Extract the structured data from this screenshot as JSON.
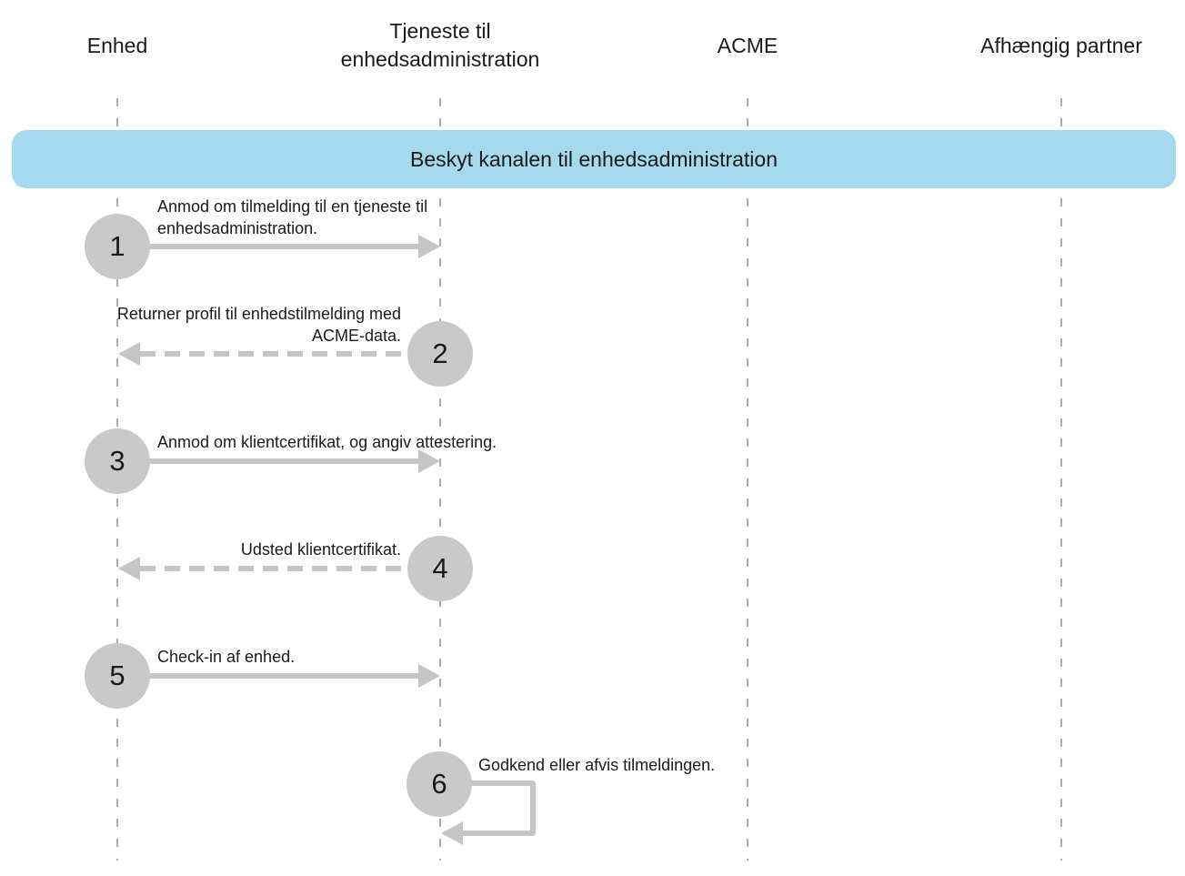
{
  "diagram": {
    "type": "sequence",
    "actors": [
      {
        "id": "enhed",
        "label": "Enhed"
      },
      {
        "id": "tjeneste",
        "label": "Tjeneste til enhedsadministration"
      },
      {
        "id": "acme",
        "label": "ACME"
      },
      {
        "id": "partner",
        "label": "Afhængig partner"
      }
    ],
    "banner": {
      "label": "Beskyt kanalen til enhedsadministration"
    },
    "steps": [
      {
        "num": "1",
        "text": "Anmod om tilmelding til en tjeneste til enhedsadministration.",
        "from": "Enhed",
        "to": "Tjeneste til enhedsadministration",
        "line": "solid",
        "direction": "right"
      },
      {
        "num": "2",
        "text": "Returner profil til enhedstilmelding med ACME-data.",
        "from": "Tjeneste til enhedsadministration",
        "to": "Enhed",
        "line": "dashed",
        "direction": "left"
      },
      {
        "num": "3",
        "text": "Anmod om klientcertifikat, og angiv attestering.",
        "from": "Enhed",
        "to": "Tjeneste til enhedsadministration",
        "line": "solid",
        "direction": "right"
      },
      {
        "num": "4",
        "text": "Udsted klientcertifikat.",
        "from": "Tjeneste til enhedsadministration",
        "to": "Enhed",
        "line": "dashed",
        "direction": "left"
      },
      {
        "num": "5",
        "text": "Check-in af enhed.",
        "from": "Enhed",
        "to": "Tjeneste til enhedsadministration",
        "line": "solid",
        "direction": "right"
      },
      {
        "num": "6",
        "text": "Godkend eller afvis tilmeldingen.",
        "from": "Tjeneste til enhedsadministration",
        "to": "Tjeneste til enhedsadministration",
        "line": "solid",
        "direction": "self"
      }
    ],
    "colors": {
      "banner_bg": "#A5D9EE",
      "circle_bg": "#C9C9C9",
      "arrow": "#C5C5C5",
      "lifeline": "#ACACAC",
      "text": "#1A1A1A",
      "background": "#FFFFFF"
    }
  }
}
